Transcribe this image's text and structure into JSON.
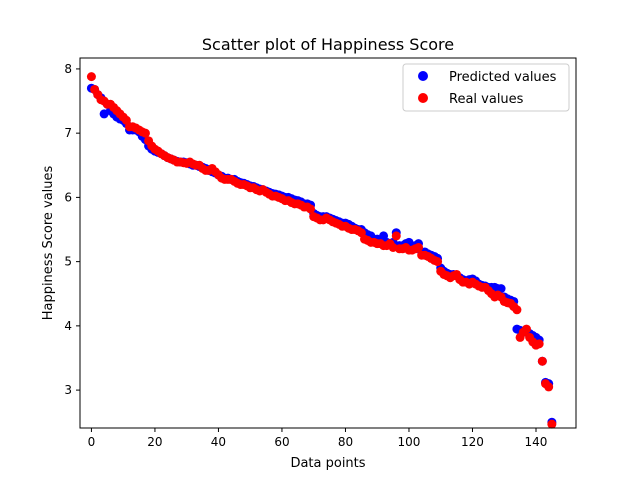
{
  "chart_data": {
    "type": "scatter",
    "title": "Scatter plot of Happiness Score",
    "xlabel": "Data points",
    "ylabel": "Happiness Score values",
    "xlim": [
      -3.6,
      152.6
    ],
    "ylim": [
      2.41,
      8.17
    ],
    "xticks": [
      0,
      20,
      40,
      60,
      80,
      100,
      120,
      140
    ],
    "yticks": [
      3,
      4,
      5,
      6,
      7,
      8
    ],
    "grid": false,
    "legend_position": "top-right",
    "series": [
      {
        "name": "Predicted values",
        "color": "#0000ff",
        "x": [
          0,
          1,
          2,
          3,
          4,
          5,
          6,
          7,
          8,
          9,
          10,
          11,
          12,
          13,
          14,
          15,
          16,
          17,
          18,
          19,
          20,
          21,
          22,
          23,
          24,
          25,
          26,
          27,
          28,
          29,
          30,
          31,
          32,
          33,
          34,
          35,
          36,
          37,
          38,
          39,
          40,
          41,
          42,
          43,
          44,
          45,
          46,
          47,
          48,
          49,
          50,
          51,
          52,
          53,
          54,
          55,
          56,
          57,
          58,
          59,
          60,
          61,
          62,
          63,
          64,
          65,
          66,
          67,
          68,
          69,
          70,
          71,
          72,
          73,
          74,
          75,
          76,
          77,
          78,
          79,
          80,
          81,
          82,
          83,
          84,
          85,
          86,
          87,
          88,
          89,
          90,
          91,
          92,
          93,
          94,
          95,
          96,
          97,
          98,
          99,
          100,
          101,
          102,
          103,
          104,
          105,
          106,
          107,
          108,
          109,
          110,
          111,
          112,
          113,
          114,
          115,
          116,
          117,
          118,
          119,
          120,
          121,
          122,
          123,
          124,
          125,
          126,
          127,
          128,
          129,
          130,
          131,
          132,
          133,
          134,
          135,
          136,
          137,
          138,
          139,
          140,
          141,
          142,
          143,
          144,
          145
        ],
        "y": [
          7.7,
          7.68,
          7.6,
          7.55,
          7.3,
          7.45,
          7.35,
          7.3,
          7.25,
          7.22,
          7.2,
          7.15,
          7.05,
          7.05,
          7.05,
          7.02,
          6.95,
          6.9,
          6.8,
          6.75,
          6.72,
          6.7,
          6.68,
          6.65,
          6.62,
          6.6,
          6.58,
          6.56,
          6.55,
          6.55,
          6.54,
          6.52,
          6.5,
          6.5,
          6.48,
          6.47,
          6.45,
          6.42,
          6.4,
          6.38,
          6.35,
          6.33,
          6.3,
          6.3,
          6.28,
          6.28,
          6.25,
          6.23,
          6.22,
          6.2,
          6.18,
          6.17,
          6.15,
          6.13,
          6.12,
          6.1,
          6.08,
          6.06,
          6.05,
          6.04,
          6.02,
          6.0,
          6.0,
          5.98,
          5.96,
          5.95,
          5.93,
          5.9,
          5.9,
          5.88,
          5.75,
          5.72,
          5.7,
          5.7,
          5.7,
          5.68,
          5.66,
          5.64,
          5.62,
          5.6,
          5.6,
          5.58,
          5.55,
          5.52,
          5.5,
          5.5,
          5.45,
          5.42,
          5.4,
          5.35,
          5.35,
          5.32,
          5.4,
          5.3,
          5.28,
          5.3,
          5.45,
          5.25,
          5.25,
          5.28,
          5.3,
          5.22,
          5.25,
          5.28,
          5.15,
          5.15,
          5.12,
          5.1,
          5.08,
          5.05,
          4.9,
          4.85,
          4.82,
          4.8,
          4.8,
          4.78,
          4.75,
          4.72,
          4.7,
          4.72,
          4.73,
          4.7,
          4.65,
          4.63,
          4.62,
          4.6,
          4.6,
          4.6,
          4.58,
          4.58,
          4.45,
          4.42,
          4.4,
          4.38,
          3.95,
          3.93,
          3.9,
          3.9,
          3.88,
          3.85,
          3.82,
          3.78,
          3.45,
          3.12,
          3.1,
          2.5
        ]
      },
      {
        "name": "Real values",
        "color": "#ff0000",
        "x": [
          0,
          1,
          2,
          3,
          4,
          5,
          6,
          7,
          8,
          9,
          10,
          11,
          12,
          13,
          14,
          15,
          16,
          17,
          18,
          19,
          20,
          21,
          22,
          23,
          24,
          25,
          26,
          27,
          28,
          29,
          30,
          31,
          32,
          33,
          34,
          35,
          36,
          37,
          38,
          39,
          40,
          41,
          42,
          43,
          44,
          45,
          46,
          47,
          48,
          49,
          50,
          51,
          52,
          53,
          54,
          55,
          56,
          57,
          58,
          59,
          60,
          61,
          62,
          63,
          64,
          65,
          66,
          67,
          68,
          69,
          70,
          71,
          72,
          73,
          74,
          75,
          76,
          77,
          78,
          79,
          80,
          81,
          82,
          83,
          84,
          85,
          86,
          87,
          88,
          89,
          90,
          91,
          92,
          93,
          94,
          95,
          96,
          97,
          98,
          99,
          100,
          101,
          102,
          103,
          104,
          105,
          106,
          107,
          108,
          109,
          110,
          111,
          112,
          113,
          114,
          115,
          116,
          117,
          118,
          119,
          120,
          121,
          122,
          123,
          124,
          125,
          126,
          127,
          128,
          129,
          130,
          131,
          132,
          133,
          134,
          135,
          136,
          137,
          138,
          139,
          140,
          141,
          142,
          143,
          144,
          145
        ],
        "y": [
          7.88,
          7.68,
          7.6,
          7.52,
          7.5,
          7.45,
          7.45,
          7.4,
          7.35,
          7.3,
          7.25,
          7.2,
          7.1,
          7.1,
          7.08,
          7.05,
          7.02,
          7.0,
          6.88,
          6.8,
          6.75,
          6.72,
          6.68,
          6.65,
          6.62,
          6.6,
          6.58,
          6.55,
          6.55,
          6.54,
          6.53,
          6.55,
          6.52,
          6.5,
          6.5,
          6.45,
          6.42,
          6.42,
          6.45,
          6.4,
          6.35,
          6.3,
          6.28,
          6.28,
          6.28,
          6.25,
          6.22,
          6.2,
          6.2,
          6.18,
          6.15,
          6.15,
          6.12,
          6.1,
          6.12,
          6.08,
          6.05,
          6.02,
          6.02,
          6.0,
          5.98,
          5.95,
          5.95,
          5.92,
          5.9,
          5.9,
          5.88,
          5.85,
          5.85,
          5.82,
          5.7,
          5.68,
          5.65,
          5.65,
          5.68,
          5.65,
          5.62,
          5.6,
          5.58,
          5.55,
          5.55,
          5.52,
          5.5,
          5.5,
          5.48,
          5.45,
          5.35,
          5.33,
          5.3,
          5.3,
          5.28,
          5.28,
          5.25,
          5.25,
          5.28,
          5.22,
          5.4,
          5.2,
          5.2,
          5.22,
          5.18,
          5.18,
          5.2,
          5.22,
          5.1,
          5.1,
          5.08,
          5.05,
          5.02,
          5.0,
          4.85,
          4.8,
          4.78,
          4.75,
          4.78,
          4.8,
          4.72,
          4.68,
          4.68,
          4.65,
          4.68,
          4.65,
          4.62,
          4.6,
          4.6,
          4.55,
          4.5,
          4.45,
          4.48,
          4.45,
          4.38,
          4.36,
          4.35,
          4.3,
          4.25,
          3.82,
          3.9,
          3.95,
          3.82,
          3.75,
          3.7,
          3.72,
          3.45,
          3.1,
          3.05,
          2.47
        ]
      }
    ]
  }
}
